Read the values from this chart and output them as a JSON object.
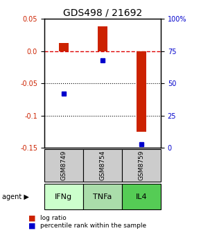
{
  "title": "GDS498 / 21692",
  "samples": [
    "GSM8749",
    "GSM8754",
    "GSM8759"
  ],
  "agents": [
    "IFNg",
    "TNFa",
    "IL4"
  ],
  "log_ratios": [
    0.012,
    0.038,
    -0.125
  ],
  "percentile_ranks": [
    42,
    68,
    3
  ],
  "bar_color": "#cc2200",
  "dot_color": "#0000cc",
  "ylim_left": [
    -0.15,
    0.05
  ],
  "ylim_right": [
    0,
    100
  ],
  "yticks_left": [
    0.05,
    0.0,
    -0.05,
    -0.1,
    -0.15
  ],
  "yticks_right": [
    100,
    75,
    50,
    25,
    0
  ],
  "agent_colors": [
    "#ccffcc",
    "#aaddaa",
    "#55cc55"
  ],
  "sample_bg": "#cccccc",
  "hline_color": "#dd0000",
  "dotted_line_color": "#000000",
  "left_label_color": "#cc2200",
  "right_label_color": "#0000cc",
  "bar_width": 0.25
}
